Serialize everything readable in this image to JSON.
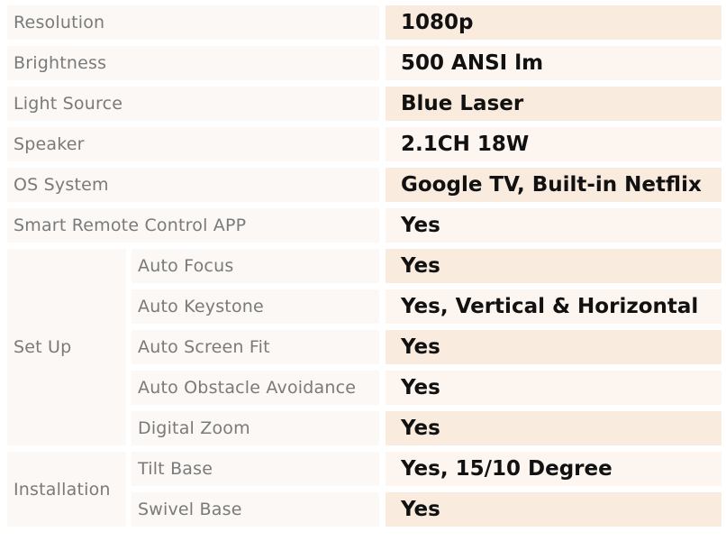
{
  "rows": [
    {
      "label": "Resolution",
      "value": "1080p"
    },
    {
      "label": "Brightness",
      "value": "500 ANSI lm"
    },
    {
      "label": "Light Source",
      "value": "Blue Laser"
    },
    {
      "label": "Speaker",
      "value": "2.1CH 18W"
    },
    {
      "label": "OS System",
      "value": "Google TV, Built-in Netflix"
    },
    {
      "label": "Smart Remote Control APP",
      "value": "Yes"
    }
  ],
  "setup": {
    "label": "Set Up",
    "items": [
      {
        "label": "Auto Focus",
        "value": "Yes"
      },
      {
        "label": "Auto  Keystone",
        "value": "Yes, Vertical & Horizontal"
      },
      {
        "label": "Auto Screen Fit",
        "value": "Yes"
      },
      {
        "label": "Auto Obstacle Avoidance",
        "value": "Yes"
      },
      {
        "label": "Digital Zoom",
        "value": "Yes"
      }
    ]
  },
  "installation": {
    "label": "Installation",
    "items": [
      {
        "label": "Tilt Base",
        "value": "Yes, 15/10 Degree"
      },
      {
        "label": "Swivel Base",
        "value": "Yes"
      }
    ]
  }
}
